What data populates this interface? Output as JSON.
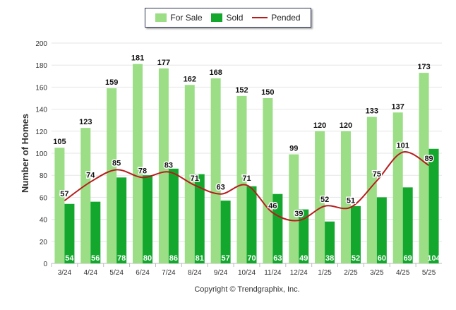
{
  "legend": {
    "for_sale": "For Sale",
    "sold": "Sold",
    "pended": "Pended"
  },
  "colors": {
    "for_sale": "#9bde86",
    "sold": "#13a82d",
    "pended": "#b71c1c",
    "grid": "#e6e6e6"
  },
  "chart_data": {
    "type": "bar",
    "title": "",
    "xlabel": "",
    "ylabel": "Number of Homes",
    "ylim": [
      0,
      200
    ],
    "yticks": [
      0,
      20,
      40,
      60,
      80,
      100,
      120,
      140,
      160,
      180,
      200
    ],
    "categories": [
      "3/24",
      "4/24",
      "5/24",
      "6/24",
      "7/24",
      "8/24",
      "9/24",
      "10/24",
      "11/24",
      "12/24",
      "1/25",
      "2/25",
      "3/25",
      "4/25",
      "5/25"
    ],
    "series": [
      {
        "name": "For Sale",
        "type": "bar",
        "values": [
          105,
          123,
          159,
          181,
          177,
          162,
          168,
          152,
          150,
          99,
          120,
          120,
          133,
          137,
          173
        ]
      },
      {
        "name": "Sold",
        "type": "bar",
        "values": [
          54,
          56,
          78,
          80,
          86,
          81,
          57,
          70,
          63,
          49,
          38,
          52,
          60,
          69,
          104
        ]
      },
      {
        "name": "Pended",
        "type": "line",
        "values": [
          57,
          74,
          85,
          78,
          83,
          71,
          63,
          71,
          46,
          39,
          52,
          51,
          75,
          101,
          89
        ]
      }
    ],
    "legend_position": "top-center",
    "grid": true
  },
  "footer": {
    "copyright": "Copyright © Trendgraphix, Inc."
  }
}
